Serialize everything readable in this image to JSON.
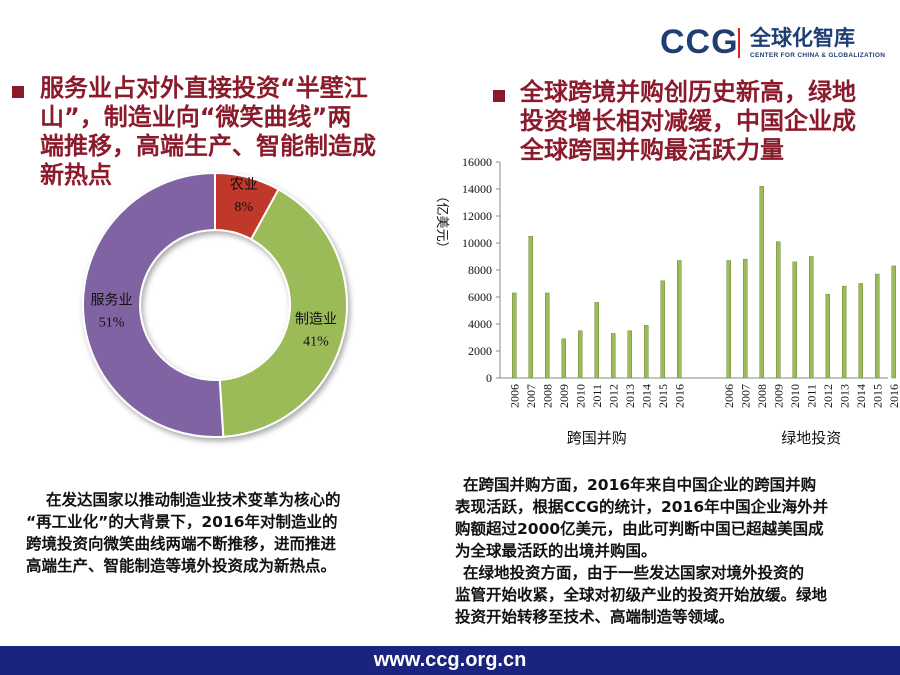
{
  "logo": {
    "abbr": "CCG",
    "name_cn": "全球化智库",
    "name_en": "CENTER FOR CHINA & GLOBALIZATION"
  },
  "left": {
    "heading_lines": [
      "服务业占对外直接投资“半壁江",
      "山”，制造业向“微笑曲线”两",
      "端推移，高端生产、智能制造成",
      "新热点"
    ],
    "paragraph_lines": [
      "在发达国家以推动制造业技术变革为核心的",
      "“再工业化”的大背景下，2016年对制造业的",
      "跨境投资向微笑曲线两端不断推移，进而推进",
      "高端生产、智能制造等境外投资成为新热点。"
    ]
  },
  "right": {
    "heading_lines": [
      "全球跨境并购创历史新高，绿地",
      "投资增长相对减缓，中国企业成",
      "全球跨国并购最活跃力量"
    ],
    "paragraph_lines": [
      "在跨国并购方面，2016年来自中国企业的跨国并购",
      "表现活跃，根据CCG的统计，2016年中国企业海外并",
      "购额超过2000亿美元，由此可判断中国已超越美国成",
      "为全球最活跃的出境并购国。",
      "在绿地投资方面，由于一些发达国家对境外投资的",
      "监管开始收紧，全球对初级产业的投资开始放缓。绿地",
      "投资开始转移至技术、高端制造等领域。"
    ]
  },
  "footer": {
    "url": "www.ccg.org.cn"
  },
  "chart_data": [
    {
      "type": "pie",
      "donut": true,
      "slices": [
        {
          "label": "农业",
          "value": 8,
          "display": "8%",
          "color": "#c0392b"
        },
        {
          "label": "制造业",
          "value": 41,
          "display": "41%",
          "color": "#9bbb59"
        },
        {
          "label": "服务业",
          "value": 51,
          "display": "51%",
          "color": "#8064a2"
        }
      ]
    },
    {
      "type": "bar",
      "ylabel": "（亿美元）",
      "ylim": [
        0,
        16000
      ],
      "yticks": [
        0,
        2000,
        4000,
        6000,
        8000,
        10000,
        12000,
        14000,
        16000
      ],
      "grid": false,
      "bar_color": "#9bbb59",
      "groups": [
        {
          "name": "跨国并购",
          "categories": [
            "2006",
            "2007",
            "2008",
            "2009",
            "2010",
            "2011",
            "2012",
            "2013",
            "2014",
            "2015",
            "2016"
          ],
          "values": [
            6300,
            10500,
            6300,
            2900,
            3500,
            5600,
            3300,
            3500,
            3900,
            7200,
            8700
          ]
        },
        {
          "name": "绿地投资",
          "categories": [
            "2006",
            "2007",
            "2008",
            "2009",
            "2010",
            "2011",
            "2012",
            "2013",
            "2014",
            "2015",
            "2016"
          ],
          "values": [
            8700,
            8800,
            14200,
            10100,
            8600,
            9000,
            6200,
            6800,
            7000,
            7700,
            8300
          ]
        }
      ]
    }
  ]
}
